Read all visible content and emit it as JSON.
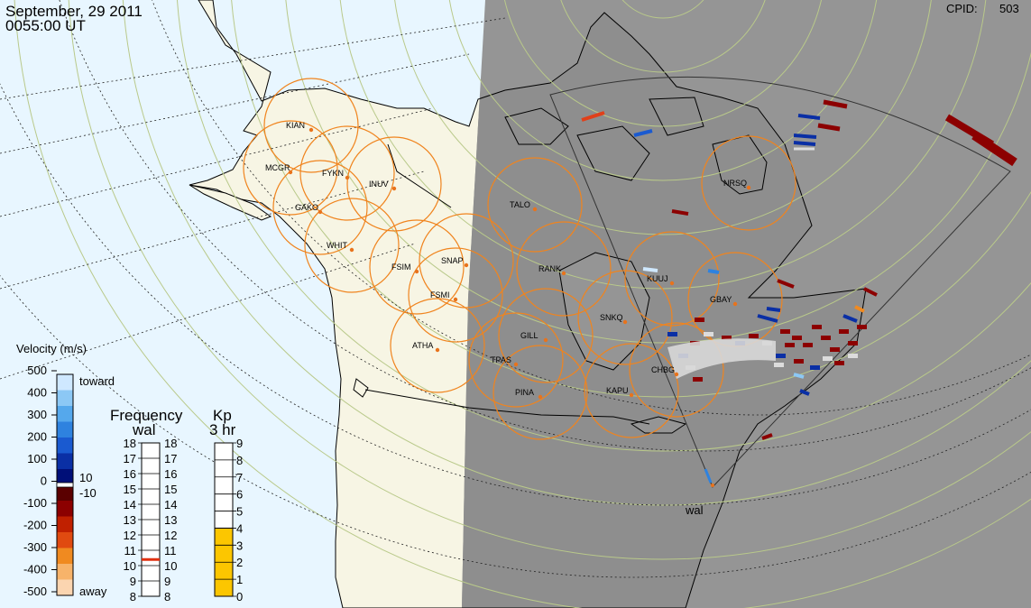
{
  "header": {
    "date": "September, 29 2011",
    "time": "0055:00 UT",
    "cpid_label": "CPID:",
    "cpid_value": "503"
  },
  "colors": {
    "ocean_day": "#e8f6ff",
    "land_day": "#f7f5e4",
    "night": "#959595",
    "night_land": "#8e8e8e",
    "fov_circle": "#f0841e",
    "station_dot": "#e8731c",
    "grid_line": "#b9c98a"
  },
  "stations": [
    {
      "code": "KIAN"
    },
    {
      "code": "MCGR"
    },
    {
      "code": "FYKN"
    },
    {
      "code": "INUV"
    },
    {
      "code": "GAKO"
    },
    {
      "code": "WHIT"
    },
    {
      "code": "FSIM"
    },
    {
      "code": "SNAP"
    },
    {
      "code": "FSMI"
    },
    {
      "code": "ATHA"
    },
    {
      "code": "TALO"
    },
    {
      "code": "RANK"
    },
    {
      "code": "GILL"
    },
    {
      "code": "TPAS"
    },
    {
      "code": "PINA"
    },
    {
      "code": "SNKQ"
    },
    {
      "code": "KAPU"
    },
    {
      "code": "CHBG"
    },
    {
      "code": "KUUJ"
    },
    {
      "code": "GBAY"
    },
    {
      "code": "NRSQ"
    }
  ],
  "radar": {
    "site": "wal"
  },
  "velocity_scale": {
    "title": "Velocity (m/s)",
    "ticks": [
      "500",
      "400",
      "300",
      "200",
      "100",
      "0",
      "-100",
      "-200",
      "-300",
      "-400",
      "-500"
    ],
    "toward_label": "toward",
    "away_label": "away",
    "threshold_pos": "10",
    "threshold_neg": "-10",
    "colors": [
      "#cfe8ff",
      "#8cc8f5",
      "#55a8ec",
      "#2e82df",
      "#1a5ad0",
      "#0a2fa5",
      "#000f78",
      "#5a0000",
      "#8c0000",
      "#c02000",
      "#e04a10",
      "#f08a20",
      "#f7b36a",
      "#fbd5b0"
    ]
  },
  "frequency_scale": {
    "title": "Frequency",
    "subtitle": "wal",
    "ticks": [
      "18",
      "17",
      "16",
      "15",
      "14",
      "13",
      "12",
      "11",
      "10",
      "9",
      "8"
    ],
    "current_mhz": 10.4
  },
  "kp_scale": {
    "title": "Kp",
    "subtitle": "3 hr",
    "ticks": [
      "9",
      "8",
      "7",
      "6",
      "5",
      "4",
      "3",
      "2",
      "1",
      "0"
    ],
    "current": 4,
    "fill_color": "#fcc600"
  }
}
